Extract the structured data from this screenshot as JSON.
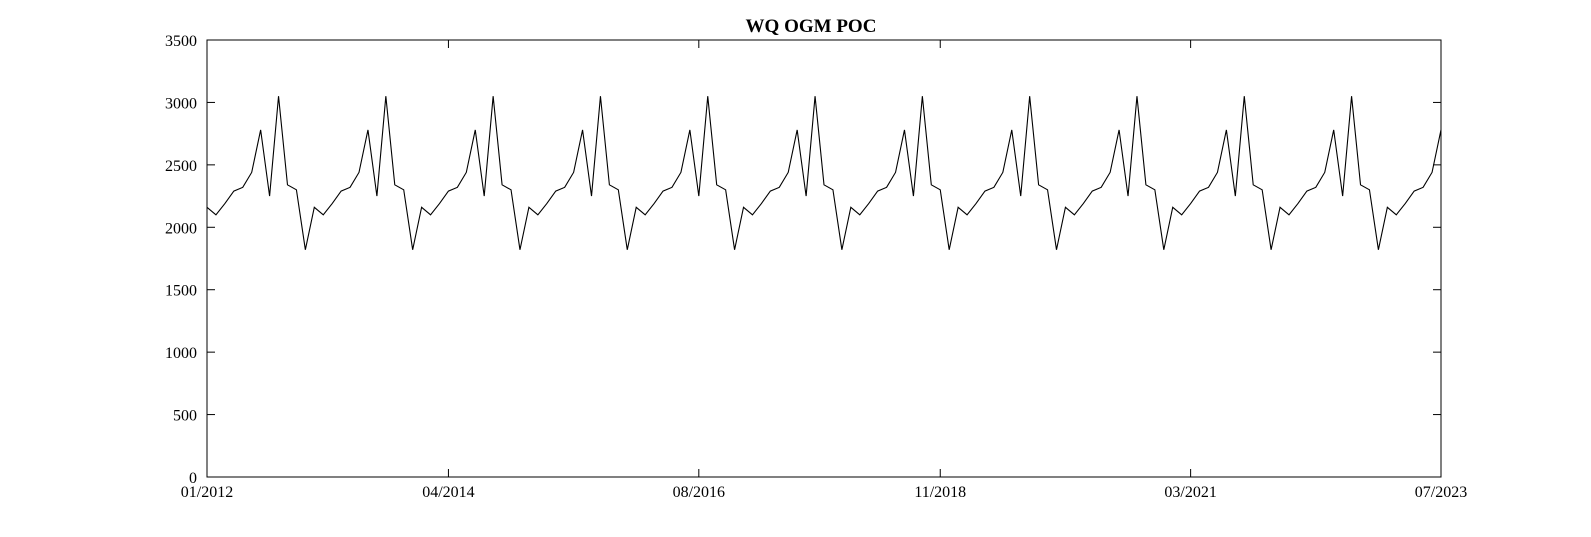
{
  "chart_data": {
    "type": "line",
    "title": "WQ OGM POC",
    "xlabel": "",
    "ylabel": "",
    "ylim": [
      0,
      3500
    ],
    "yticks": [
      0,
      500,
      1000,
      1500,
      2000,
      2500,
      3000,
      3500
    ],
    "x_range": [
      "2012-01",
      "2023-07"
    ],
    "xticks": [
      {
        "label": "01/2012",
        "date": "2012-01"
      },
      {
        "label": "04/2014",
        "date": "2014-04"
      },
      {
        "label": "08/2016",
        "date": "2016-08"
      },
      {
        "label": "11/2018",
        "date": "2018-11"
      },
      {
        "label": "03/2021",
        "date": "2021-03"
      },
      {
        "label": "07/2023",
        "date": "2023-07"
      }
    ],
    "grid": false,
    "legend": "none",
    "line_color": "#000000",
    "series": [
      {
        "x_start": "2012-01",
        "x_step": "1 month",
        "annual_pattern": [
          2160,
          2100,
          2190,
          2290,
          2320,
          2440,
          2780,
          2250,
          3050,
          2340,
          2300,
          1820
        ],
        "years": 12,
        "last_date": "2023-07"
      }
    ]
  }
}
